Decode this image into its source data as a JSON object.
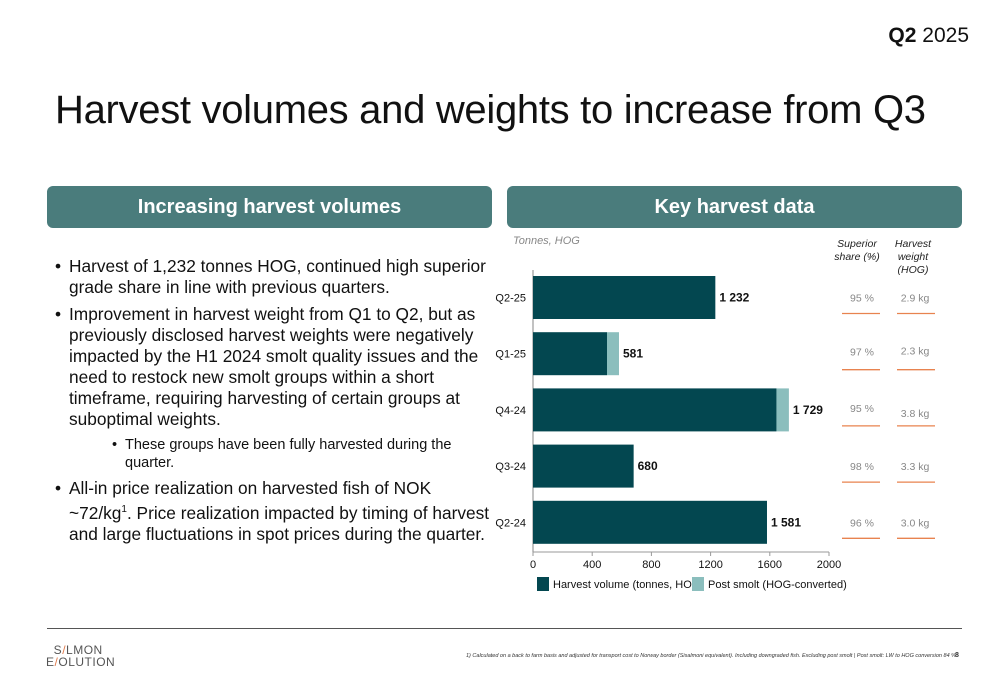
{
  "header": {
    "period_bold": "Q2",
    "period_year": "2025",
    "title": "Harvest volumes and weights to increase from Q3"
  },
  "left_panel": {
    "heading": "Increasing harvest volumes",
    "bullets": [
      "Harvest of 1,232 tonnes HOG, continued high superior grade share in line with previous quarters.",
      "Improvement in harvest weight from Q1 to Q2, but as previously disclosed harvest weights were negatively impacted by the H1 2024 smolt quality issues and the need to restock new smolt groups within a short timeframe, requiring harvesting of certain groups at suboptimal weights."
    ],
    "sub_bullet": "These groups have been fully harvested during the quarter.",
    "last_bullet_pre": "All-in price realization on harvested fish of NOK ~72/kg",
    "last_bullet_sup": "1",
    "last_bullet_post": ". Price realization impacted by timing of harvest and large fluctuations in spot prices during the quarter."
  },
  "right_panel": {
    "heading": "Key harvest data",
    "col_superior": "Superior share (%)",
    "col_weight": "Harvest weight (HOG)"
  },
  "chart_data": {
    "type": "bar",
    "orientation": "horizontal",
    "stacked": true,
    "unit_label": "Tonnes, HOG",
    "categories": [
      "Q2-25",
      "Q1-25",
      "Q4-24",
      "Q3-24",
      "Q2-24"
    ],
    "series": [
      {
        "name": "Harvest  volume (tonnes, HOG)",
        "color": "#034750",
        "values": [
          1232,
          500,
          1645,
          680,
          1581
        ]
      },
      {
        "name": "Post smolt (HOG-converted)",
        "color": "#8bbebd",
        "values": [
          0,
          81,
          84,
          0,
          0
        ]
      }
    ],
    "data_labels": [
      "1 232",
      "581",
      "1 729",
      "680",
      "1 581"
    ],
    "xlim": [
      0,
      2000
    ],
    "xticks": [
      0,
      400,
      800,
      1200,
      1600,
      2000
    ],
    "legend": "bottom",
    "superior_share": [
      "95 %",
      "97 %",
      "95 %",
      "98 %",
      "96 %"
    ],
    "harvest_weight": [
      "2.9 kg",
      "2.3 kg",
      "3.8 kg",
      "3.3 kg",
      "3.0 kg"
    ],
    "accent_line_color": "#e8834f"
  },
  "footer": {
    "logo_line1_a": "S",
    "logo_line1_b": "LMON",
    "logo_line2_a": "E",
    "logo_line2_b": "OLUTION",
    "footnote": "1) Calculated on a back to farm basis and adjusted for transport cost to Norway border (Sisalmoni equivalent). Including downgraded fish. Excluding post smolt | Post smolt: LW to HOG conversion 84 %",
    "page_number": "8"
  }
}
